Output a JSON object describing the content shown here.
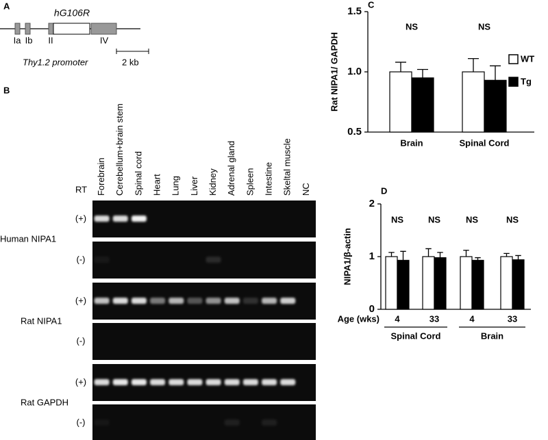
{
  "panel_a": {
    "label": "A",
    "gene": "hG106R",
    "exons": [
      "Ia",
      "Ib",
      "II",
      "IV"
    ],
    "promoter": "Thy1.2 promoter",
    "scale": "2 kb"
  },
  "panel_b": {
    "label": "B",
    "rt_label": "RT",
    "lanes": [
      "Forebrain",
      "Cerebellum+brain stem",
      "Spinal cord",
      "Heart",
      "Lung",
      "Liver",
      "Kidney",
      "Adrenal gland",
      "Spleen",
      "Intestine",
      "Skeltal muscle",
      "NC"
    ],
    "genes": [
      {
        "name": "Human NIPA1",
        "conditions": [
          "(+)",
          "(-)"
        ]
      },
      {
        "name": "Rat NIPA1",
        "conditions": [
          "(+)",
          "(-)"
        ]
      },
      {
        "name": "Rat GAPDH",
        "conditions": [
          "(+)",
          "(-)"
        ]
      }
    ]
  },
  "chart_data": [
    {
      "type": "bar",
      "panel": "C",
      "y_label": "Rat NIPA1/ GAPDH",
      "categories": [
        "Brain",
        "Spinal Cord"
      ],
      "series": [
        {
          "name": "WT",
          "color": "#ffffff",
          "values": [
            1.0,
            1.0
          ],
          "errors": [
            0.08,
            0.11
          ]
        },
        {
          "name": "Tg",
          "color": "#000000",
          "values": [
            0.95,
            0.93
          ],
          "errors": [
            0.07,
            0.12
          ]
        }
      ],
      "annotations": [
        "NS",
        "NS"
      ],
      "ylim": [
        0.5,
        1.5
      ],
      "yticks": [
        0.5,
        {
          "value": 1.0,
          "label": "1.0"
        },
        1.5
      ],
      "legend": "right"
    },
    {
      "type": "bar",
      "panel": "D",
      "y_label": "NIPA1/β-actin",
      "x_label": "Age (wks)",
      "categories": [
        "4",
        "33",
        "4",
        "33"
      ],
      "groups": [
        "Spinal Cord",
        "Brain"
      ],
      "series": [
        {
          "name": "WT",
          "color": "#ffffff",
          "values": [
            1.0,
            1.0,
            1.0,
            1.0
          ],
          "errors": [
            0.08,
            0.15,
            0.12,
            0.06
          ]
        },
        {
          "name": "Tg",
          "color": "#000000",
          "values": [
            0.93,
            0.98,
            0.93,
            0.94
          ],
          "errors": [
            0.17,
            0.1,
            0.05,
            0.08
          ]
        }
      ],
      "annotations": [
        "NS",
        "NS",
        "NS",
        "NS"
      ],
      "ylim": [
        0,
        2
      ],
      "yticks": [
        0,
        1,
        2
      ]
    }
  ]
}
